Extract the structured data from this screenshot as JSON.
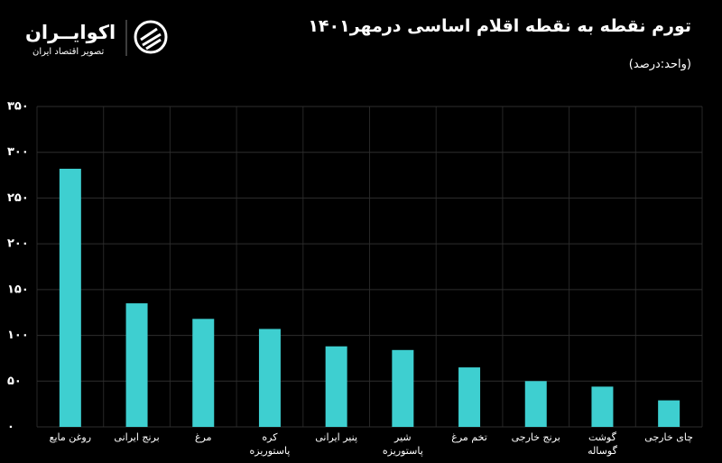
{
  "chart_data": {
    "type": "bar",
    "title": "تورم نقطه به نقطه اقلام اساسی درمهر۱۴۰۱",
    "subtitle": "(واحد:درصد)",
    "brand": "اکوایــران",
    "brand_tagline": "تصویر اقتصاد ایران",
    "categories": [
      "روغن مایع",
      "برنج ایرانی",
      "مرغ",
      "کره\nپاستوریزه",
      "پنیر ایرانی",
      "شیر\nپاستوریزه",
      "تخم مرغ",
      "برنج خارجی",
      "گوشت\nگوساله",
      "چای خارجی"
    ],
    "values": [
      282,
      135,
      118,
      107,
      88,
      84,
      65,
      50,
      44,
      29
    ],
    "color": "#3ecfd0",
    "ylim": [
      0,
      350
    ],
    "yticks": [
      {
        "value": 0,
        "label": "۰"
      },
      {
        "value": 50,
        "label": "۵۰"
      },
      {
        "value": 100,
        "label": "۱۰۰"
      },
      {
        "value": 150,
        "label": "۱۵۰"
      },
      {
        "value": 200,
        "label": "۲۰۰"
      },
      {
        "value": 250,
        "label": "۲۵۰"
      },
      {
        "value": 300,
        "label": "۳۰۰"
      },
      {
        "value": 350,
        "label": "۳۵۰"
      }
    ],
    "grid": true
  }
}
